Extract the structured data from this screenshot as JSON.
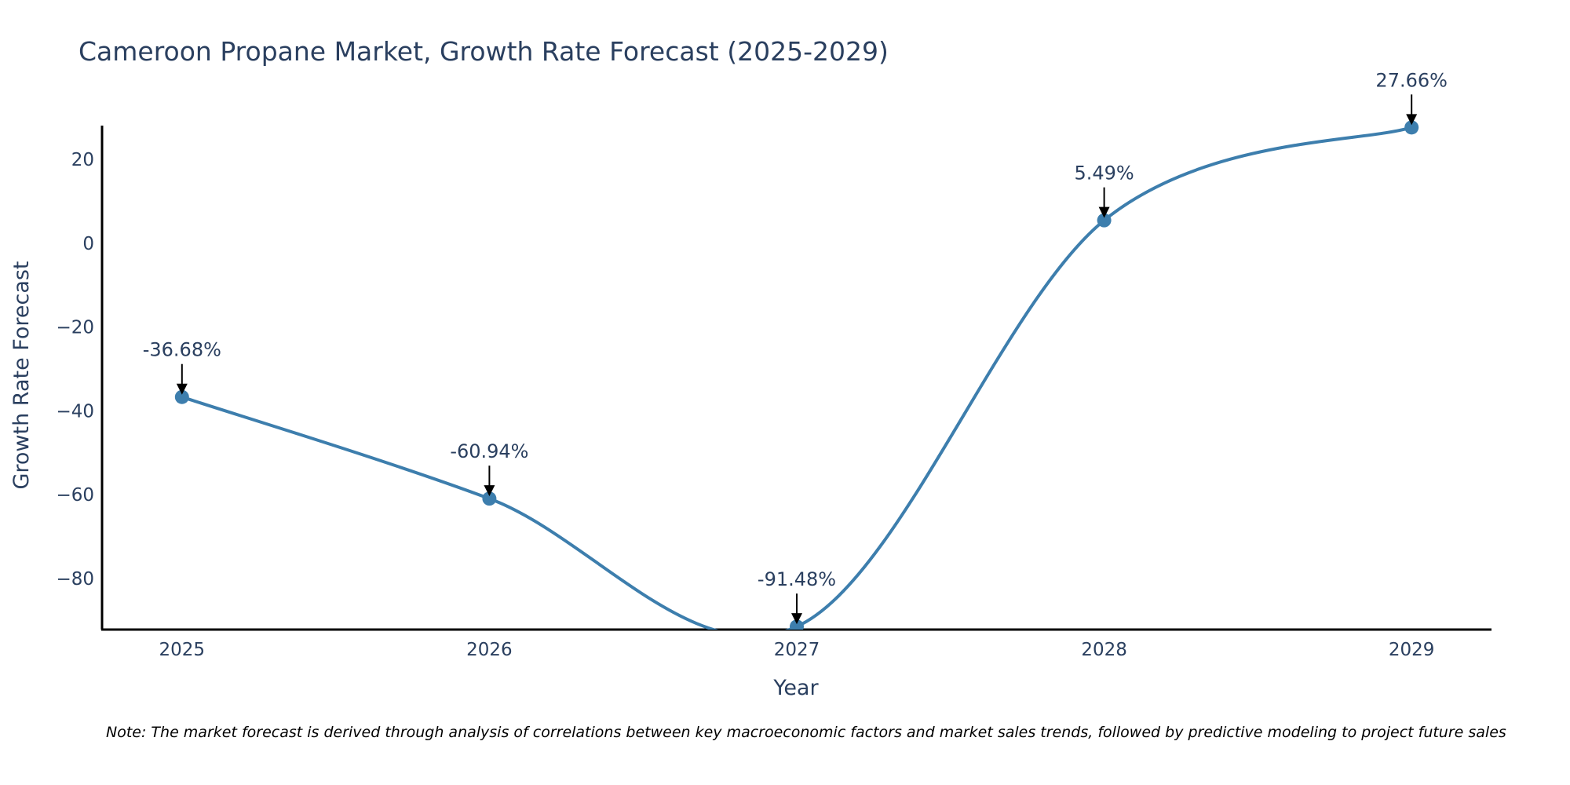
{
  "chart_data": {
    "type": "line",
    "title": "Cameroon Propane Market, Growth Rate Forecast (2025-2029)",
    "xlabel": "Year",
    "ylabel": "Growth Rate Forecast",
    "categories": [
      "2025",
      "2026",
      "2027",
      "2028",
      "2029"
    ],
    "series": [
      {
        "name": "Growth Rate Forecast",
        "values": [
          -36.68,
          -60.94,
          -91.48,
          5.49,
          27.66
        ],
        "labels": [
          "-36.68%",
          "-60.94%",
          "-91.48%",
          "5.49%",
          "27.66%"
        ],
        "color": "#3d7ead"
      }
    ],
    "yticks": [
      -80,
      -60,
      -40,
      -20,
      0,
      20
    ],
    "ytick_labels": [
      "−80",
      "−60",
      "−40",
      "−20",
      "0",
      "20"
    ],
    "ylim": [
      -92.2,
      28.1
    ],
    "xlim": [
      2024.74,
      2029.26
    ],
    "grid": false,
    "line_shape": "spline"
  },
  "note": "Note: The market forecast is derived through analysis of correlations between key macroeconomic factors and market sales trends, followed by predictive modeling to project future sales"
}
